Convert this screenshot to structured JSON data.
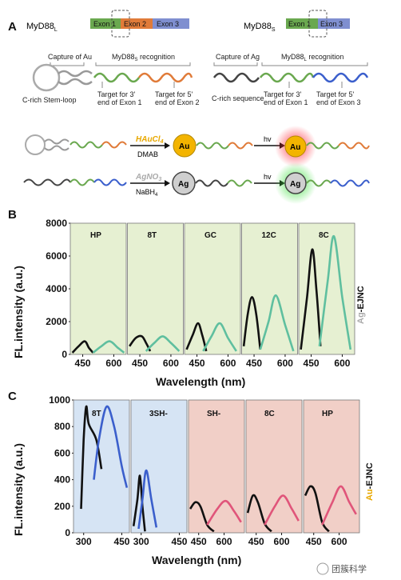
{
  "panel_a": {
    "label": "A",
    "myd88l_title": "MyD88",
    "myd88l_sub": "L",
    "myd88s_title": "MyD88",
    "myd88s_sub": "S",
    "exons_l": [
      "Exon 1",
      "Exon 2",
      "Exon 3"
    ],
    "exons_s": [
      "Exon 1",
      "Exon 3"
    ],
    "left_capture": "Capture of Au",
    "left_recognition_main": "MyD88",
    "left_recognition_sub": "S",
    "left_recognition_tail": " recognition",
    "left_loop": "C-rich Stem-loop",
    "left_target1": "Target for 3'",
    "left_target1b": "end of Exon 1",
    "left_target2": "Target for 5'",
    "left_target2b": "end of Exon 2",
    "right_capture": "Capture of Ag",
    "right_recognition_main": "MyD88",
    "right_recognition_sub": "L",
    "right_recognition_tail": " recognition",
    "right_seq": "C-rich sequence",
    "right_target1": "Target for 3'",
    "right_target1b": "end of Exon 1",
    "right_target2": "Target for 5'",
    "right_target2b": "end of Exon 3",
    "reagent_au_top": "HAuCl",
    "reagent_au_sub": "4",
    "reagent_au_bottom": "DMAB",
    "reagent_ag_top": "AgNO",
    "reagent_ag_sub": "3",
    "reagent_ag_bottom_main": "NaBH",
    "reagent_ag_bottom_sub": "4",
    "hv1": "hv",
    "hv2": "hv",
    "au": "Au",
    "ag": "Ag",
    "colors": {
      "exon1": "#6aa84f",
      "exon2": "#e07b39",
      "exon3": "#7f8fd0",
      "gold": "#e8a800",
      "silver": "#999999"
    }
  },
  "panel_b": {
    "label": "B",
    "ylabel": "FL.intensity (a.u.)",
    "xlabel": "Wavelength (nm)",
    "side_label_a": "Ag",
    "side_label_b": "-EJNC",
    "yticks": [
      "0",
      "2000",
      "4000",
      "6000",
      "8000"
    ],
    "xticks": [
      "450",
      "600"
    ]
  },
  "panel_c": {
    "label": "C",
    "ylabel": "FL.intensity (a.u.)",
    "xlabel": "Wavelength (nm)",
    "side_label_a": "Au",
    "side_label_b": "-EJNC",
    "yticks": [
      "0",
      "200",
      "400",
      "600",
      "800",
      "1000"
    ],
    "xticks_a": [
      "300",
      "450"
    ],
    "xticks_b": [
      "450",
      "600"
    ]
  },
  "watermark": "团簇科学",
  "chart_data": [
    {
      "type": "line",
      "ylim": [
        0,
        8000
      ],
      "panels": [
        {
          "name": "HP",
          "x": [
            450,
            600
          ],
          "series": [
            {
              "color": "#111111",
              "x": [
                400,
                430,
                460,
                480,
                500
              ],
              "values": [
                100,
                500,
                800,
                400,
                100
              ]
            },
            {
              "color": "#5fbf9f",
              "x": [
                500,
                540,
                580,
                620,
                650
              ],
              "values": [
                100,
                500,
                800,
                400,
                100
              ]
            }
          ]
        },
        {
          "name": "8T",
          "x": [
            450,
            600
          ],
          "series": [
            {
              "color": "#111111",
              "x": [
                400,
                430,
                460,
                480,
                500
              ],
              "values": [
                500,
                1000,
                1100,
                700,
                200
              ]
            },
            {
              "color": "#5fbf9f",
              "x": [
                480,
                520,
                560,
                600,
                640
              ],
              "values": [
                200,
                700,
                1100,
                700,
                200
              ]
            }
          ]
        },
        {
          "name": "GC",
          "x": [
            450,
            600
          ],
          "series": [
            {
              "color": "#111111",
              "x": [
                400,
                430,
                455,
                475,
                495
              ],
              "values": [
                300,
                1200,
                1900,
                1200,
                200
              ]
            },
            {
              "color": "#5fbf9f",
              "x": [
                480,
                520,
                560,
                600,
                640
              ],
              "values": [
                200,
                1100,
                1900,
                1000,
                200
              ]
            }
          ]
        },
        {
          "name": "12C",
          "x": [
            450,
            600
          ],
          "series": [
            {
              "color": "#111111",
              "x": [
                400,
                420,
                440,
                460,
                480
              ],
              "values": [
                500,
                2500,
                3500,
                2500,
                300
              ]
            },
            {
              "color": "#5fbf9f",
              "x": [
                480,
                520,
                555,
                600,
                640
              ],
              "values": [
                300,
                2000,
                3600,
                1800,
                200
              ]
            }
          ]
        },
        {
          "name": "8C",
          "x": [
            450,
            600
          ],
          "series": [
            {
              "color": "#111111",
              "x": [
                400,
                430,
                455,
                475,
                495
              ],
              "values": [
                300,
                3500,
                6400,
                4000,
                500
              ]
            },
            {
              "color": "#5fbf9f",
              "x": [
                490,
                530,
                560,
                600,
                640
              ],
              "values": [
                500,
                4500,
                7200,
                3500,
                300
              ]
            }
          ]
        }
      ]
    },
    {
      "type": "line",
      "ylim": [
        0,
        1000
      ],
      "panels": [
        {
          "name": "8T",
          "bg": "#d6e4f4",
          "series": [
            {
              "color": "#111111",
              "x": [
                290,
                300,
                310,
                320,
                350,
                370
              ],
              "values": [
                180,
                700,
                950,
                820,
                700,
                480
              ]
            },
            {
              "color": "#3b5fcc",
              "x": [
                340,
                360,
                390,
                420,
                450,
                470
              ],
              "values": [
                400,
                700,
                950,
                800,
                500,
                340
              ]
            }
          ]
        },
        {
          "name": "3SH-",
          "bg": "#d6e4f4",
          "series": [
            {
              "color": "#111111",
              "x": [
                270,
                285,
                295,
                305,
                315
              ],
              "values": [
                50,
                250,
                430,
                200,
                10
              ]
            },
            {
              "color": "#3b5fcc",
              "x": [
                290,
                305,
                320,
                340,
                360
              ],
              "values": [
                30,
                250,
                470,
                250,
                40
              ]
            }
          ]
        },
        {
          "name": "SH-",
          "bg": "#f1cfc7",
          "series": [
            {
              "color": "#111111",
              "x": [
                400,
                430,
                460,
                500,
                540
              ],
              "values": [
                180,
                230,
                200,
                60,
                10
              ]
            },
            {
              "color": "#e0557a",
              "x": [
                500,
                560,
                610,
                660,
                700
              ],
              "values": [
                60,
                180,
                240,
                160,
                80
              ]
            }
          ]
        },
        {
          "name": "8C",
          "bg": "#f1cfc7",
          "series": [
            {
              "color": "#111111",
              "x": [
                400,
                430,
                460,
                500,
                540
              ],
              "values": [
                150,
                280,
                230,
                70,
                10
              ]
            },
            {
              "color": "#e0557a",
              "x": [
                500,
                560,
                610,
                660,
                700
              ],
              "values": [
                60,
                200,
                280,
                180,
                90
              ]
            }
          ]
        },
        {
          "name": "HP",
          "bg": "#f1cfc7",
          "series": [
            {
              "color": "#111111",
              "x": [
                400,
                430,
                460,
                500,
                540
              ],
              "values": [
                280,
                350,
                300,
                80,
                10
              ]
            },
            {
              "color": "#e0557a",
              "x": [
                500,
                560,
                610,
                660,
                700
              ],
              "values": [
                60,
                230,
                350,
                230,
                140
              ]
            }
          ]
        }
      ]
    }
  ]
}
